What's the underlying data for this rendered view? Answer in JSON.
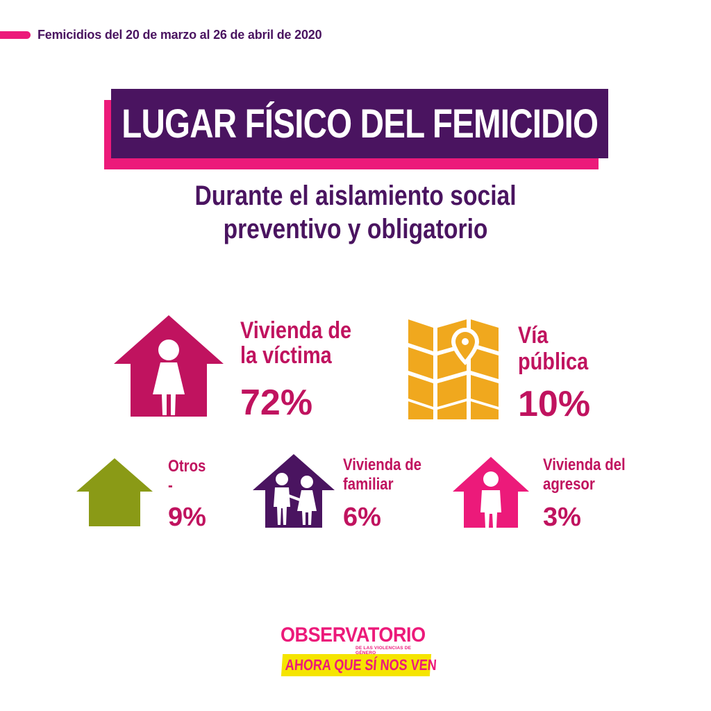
{
  "header": {
    "period": "Femicidios del 20 de marzo al 26 de abril de 2020"
  },
  "title": "LUGAR FÍSICO DEL FEMICIDIO",
  "subtitle": {
    "line1": "Durante el aislamiento social",
    "line2": "preventivo y obligatorio"
  },
  "categories": [
    {
      "label_line1": "Vivienda de",
      "label_line2": "la víctima",
      "value": "72%",
      "icon": "house-woman-icon",
      "color": "#c0135f"
    },
    {
      "label_line1": "Vía",
      "label_line2": "pública",
      "value": "10%",
      "icon": "map-pin-icon",
      "color": "#f0a81e"
    },
    {
      "label_line1": "Otros",
      "label_line2": "-",
      "value": "9%",
      "icon": "house-icon",
      "color": "#8a9a16"
    },
    {
      "label_line1": "Vivienda de",
      "label_line2": "familiar",
      "value": "6%",
      "icon": "house-family-icon",
      "color": "#4a1460"
    },
    {
      "label_line1": "Vivienda del",
      "label_line2": "agresor",
      "value": "3%",
      "icon": "house-man-icon",
      "color": "#ec1a7a"
    }
  ],
  "logo": {
    "line1": "OBSERVATORIO",
    "line2": "DE LAS VIOLENCIAS DE GÉNERO",
    "line3": "AHORA QUE SÍ NOS VEN"
  },
  "colors": {
    "purple": "#4a1460",
    "pink": "#ec1a7a",
    "magenta": "#c0135f",
    "yellow": "#f5e500"
  }
}
